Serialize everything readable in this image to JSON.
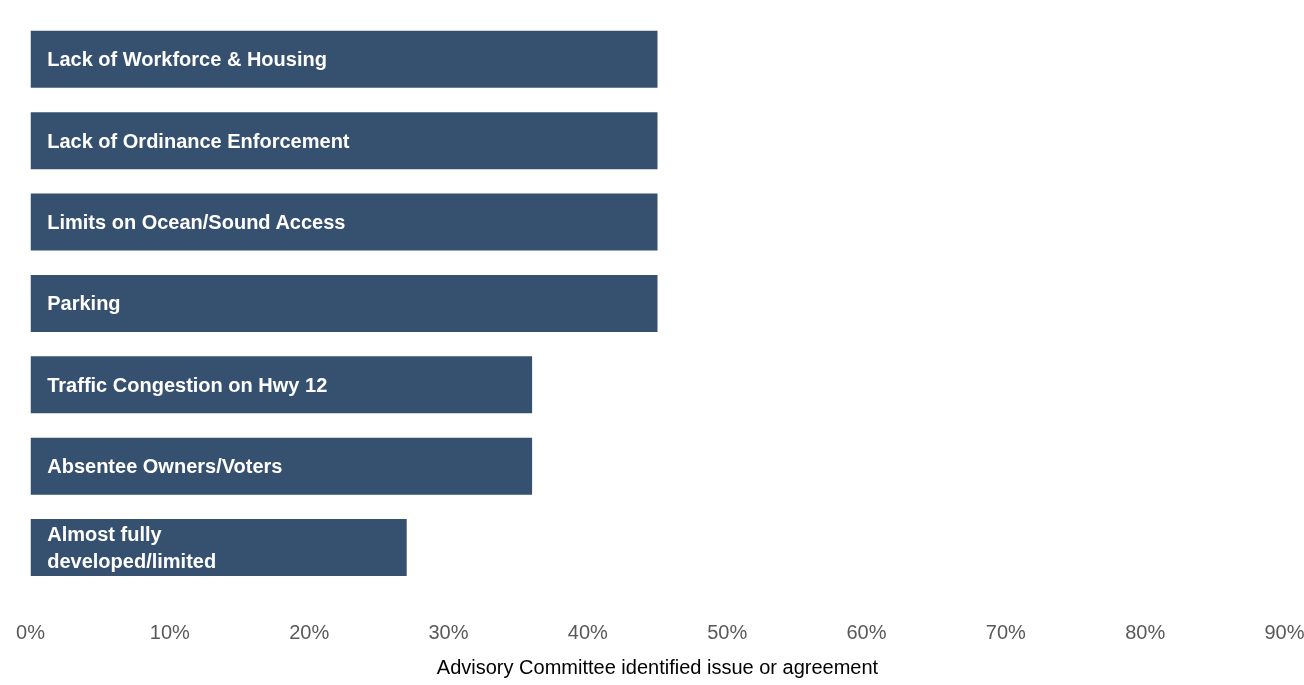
{
  "chart_data": {
    "type": "bar",
    "orientation": "horizontal",
    "xlabel": "Advisory Committee identified issue or agreement",
    "categories": [
      "Lack of Workforce & Housing",
      "Lack of Ordinance Enforcement",
      "Limits on Ocean/Sound Access",
      "Parking",
      "Traffic Congestion on Hwy 12",
      "Absentee Owners/Voters",
      "Almost fully\ndeveloped/limited"
    ],
    "values": [
      45,
      45,
      45,
      45,
      36,
      36,
      27
    ],
    "color": "#36506f",
    "xlim": [
      0,
      90
    ],
    "xticks": [
      {
        "value": 0,
        "label": "0%"
      },
      {
        "value": 10,
        "label": "10%"
      },
      {
        "value": 20,
        "label": "20%"
      },
      {
        "value": 30,
        "label": "30%"
      },
      {
        "value": 40,
        "label": "40%"
      },
      {
        "value": 50,
        "label": "50%"
      },
      {
        "value": 60,
        "label": "60%"
      },
      {
        "value": 70,
        "label": "70%"
      },
      {
        "value": 80,
        "label": "80%"
      },
      {
        "value": 90,
        "label": "90%"
      }
    ],
    "grid": false
  }
}
